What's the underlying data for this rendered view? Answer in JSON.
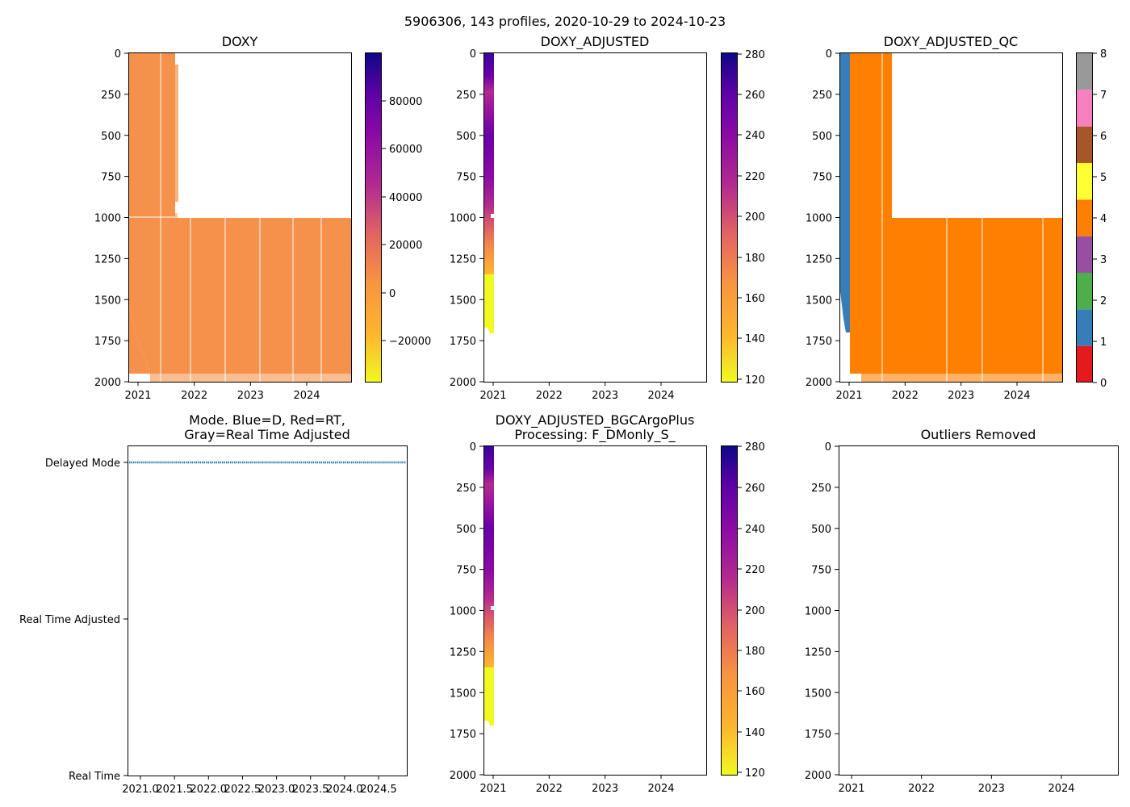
{
  "suptitle": "5906306, 143 profiles, 2020-10-29 to 2024-10-23",
  "colors": {
    "orange_field": "#f5914a",
    "qc_orange": "#ff7f00",
    "qc_blue": "#377eb8",
    "mode_line": "#1f77b4",
    "frame": "#000000"
  },
  "chart_data": [
    {
      "id": "doxy",
      "type": "heatmap",
      "title": "DOXY",
      "xlabel": "",
      "ylabel": "",
      "x_ticks": [
        "2021",
        "2022",
        "2023",
        "2024"
      ],
      "y_ticks": [
        "0",
        "250",
        "500",
        "750",
        "1000",
        "1250",
        "1500",
        "1750",
        "2000"
      ],
      "ylim": [
        2000,
        0
      ],
      "colorbar": {
        "cmap": "plasma_r",
        "range": [
          -35000,
          98000
        ],
        "ticks": [
          "80000",
          "60000",
          "40000",
          "20000",
          "0",
          "−20000"
        ]
      }
    },
    {
      "id": "doxy_adjusted",
      "type": "heatmap",
      "title": "DOXY_ADJUSTED",
      "x_ticks": [
        "2021",
        "2022",
        "2023",
        "2024"
      ],
      "y_ticks": [
        "0",
        "250",
        "500",
        "750",
        "1000",
        "1250",
        "1500",
        "1750",
        "2000"
      ],
      "ylim": [
        2000,
        0
      ],
      "colorbar": {
        "cmap": "plasma_r",
        "range": [
          118,
          281
        ],
        "ticks": [
          "280",
          "260",
          "240",
          "220",
          "200",
          "180",
          "160",
          "140",
          "120"
        ]
      }
    },
    {
      "id": "doxy_adjusted_qc",
      "type": "heatmap",
      "title": "DOXY_ADJUSTED_QC",
      "x_ticks": [
        "2021",
        "2022",
        "2023",
        "2024"
      ],
      "y_ticks": [
        "0",
        "250",
        "500",
        "750",
        "1000",
        "1250",
        "1500",
        "1750",
        "2000"
      ],
      "ylim": [
        2000,
        0
      ],
      "colorbar": {
        "cmap": "Set1",
        "range": [
          0,
          8
        ],
        "ticks": [
          "8",
          "7",
          "6",
          "5",
          "4",
          "3",
          "2",
          "1",
          "0"
        ],
        "segments": [
          "#e41a1c",
          "#377eb8",
          "#4daf4a",
          "#984ea3",
          "#ff7f00",
          "#ffff33",
          "#a65628",
          "#f781bf",
          "#999999"
        ]
      }
    },
    {
      "id": "mode",
      "type": "scatter",
      "title_line1": "Mode. Blue=D, Red=RT,",
      "title_line2": "Gray=Real Time Adjusted",
      "x_ticks": [
        "2021.0",
        "2021.5",
        "2022.0",
        "2022.5",
        "2023.0",
        "2023.5",
        "2024.0",
        "2024.5"
      ],
      "y_ticks": [
        "Delayed Mode",
        "Real Time Adjusted",
        "Real Time"
      ],
      "series": [
        {
          "name": "Delayed Mode",
          "value": "Delayed Mode",
          "x_range": [
            2020.83,
            2024.81
          ]
        }
      ]
    },
    {
      "id": "bgcargoplus",
      "type": "heatmap",
      "title_line1": "DOXY_ADJUSTED_BGCArgoPlus",
      "title_line2": "Processing: F_DMonly_S_",
      "x_ticks": [
        "2021",
        "2022",
        "2023",
        "2024"
      ],
      "y_ticks": [
        "0",
        "250",
        "500",
        "750",
        "1000",
        "1250",
        "1500",
        "1750",
        "2000"
      ],
      "ylim": [
        2000,
        0
      ],
      "colorbar": {
        "cmap": "plasma_r",
        "range": [
          118,
          281
        ],
        "ticks": [
          "280",
          "260",
          "240",
          "220",
          "200",
          "180",
          "160",
          "140",
          "120"
        ]
      }
    },
    {
      "id": "outliers",
      "type": "scatter",
      "title": "Outliers Removed",
      "x_ticks": [
        "2021",
        "2022",
        "2023",
        "2024"
      ],
      "y_ticks": [
        "0",
        "250",
        "500",
        "750",
        "1000",
        "1250",
        "1500",
        "1750",
        "2000"
      ],
      "ylim": [
        2000,
        0
      ],
      "values": []
    }
  ]
}
